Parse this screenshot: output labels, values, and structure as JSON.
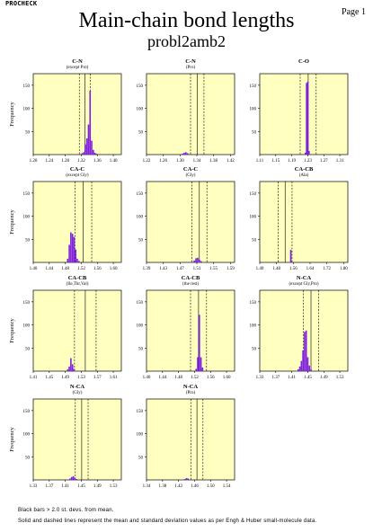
{
  "header": {
    "program": "PROCHECK",
    "page": "Page 1"
  },
  "title": "Main-chain bond lengths",
  "subtitle": "probl2amb2",
  "footer": {
    "line1": "Black bars > 2.0 st. devs. from mean.",
    "line2": "Solid and dashed lines represent the mean and standard deviation values as per Engh & Huber small-molecule data."
  },
  "chart_data": [
    {
      "type": "bar",
      "title": "C-N",
      "subtitle": "(except Pro)",
      "ylabel": "Frequency",
      "xlim": [
        1.2,
        1.42
      ],
      "xticks": [
        "1.20",
        "1.24",
        "1.28",
        "1.32",
        "1.36",
        "1.40"
      ],
      "ylim": [
        0,
        175
      ],
      "yticks": [
        50,
        100,
        150
      ],
      "mean": 1.329,
      "sd": 0.014,
      "bars": [
        [
          1.322,
          3
        ],
        [
          1.326,
          5
        ],
        [
          1.33,
          22
        ],
        [
          1.334,
          35
        ],
        [
          1.338,
          65
        ],
        [
          1.342,
          138
        ],
        [
          1.346,
          30
        ],
        [
          1.35,
          10
        ],
        [
          1.354,
          4
        ],
        [
          1.358,
          2
        ]
      ]
    },
    {
      "type": "bar",
      "title": "C-N",
      "subtitle": "(Pro)",
      "ylabel": "",
      "xlim": [
        1.22,
        1.43
      ],
      "xticks": [
        "1.22",
        "1.26",
        "1.30",
        "1.34",
        "1.38",
        "1.42"
      ],
      "ylim": [
        0,
        175
      ],
      "yticks": [
        50,
        100,
        150
      ],
      "mean": 1.341,
      "sd": 0.016,
      "bars": [
        [
          1.306,
          2
        ],
        [
          1.31,
          4
        ],
        [
          1.314,
          5
        ],
        [
          1.318,
          3
        ]
      ]
    },
    {
      "type": "bar",
      "title": "C-O",
      "subtitle": "",
      "ylabel": "",
      "xlim": [
        1.11,
        1.33
      ],
      "xticks": [
        "1.11",
        "1.15",
        "1.19",
        "1.23",
        "1.27",
        "1.31"
      ],
      "ylim": [
        0,
        175
      ],
      "yticks": [
        50,
        100,
        150
      ],
      "mean": 1.231,
      "sd": 0.02,
      "bars": [
        [
          1.224,
          4
        ],
        [
          1.227,
          155
        ],
        [
          1.23,
          158
        ],
        [
          1.233,
          8
        ]
      ]
    },
    {
      "type": "bar",
      "title": "CA-C",
      "subtitle": "(except Gly)",
      "ylabel": "Frequency",
      "xlim": [
        1.4,
        1.62
      ],
      "xticks": [
        "1.40",
        "1.44",
        "1.48",
        "1.52",
        "1.56",
        "1.60"
      ],
      "ylim": [
        0,
        175
      ],
      "yticks": [
        50,
        100,
        150
      ],
      "mean": 1.525,
      "sd": 0.021,
      "bars": [
        [
          1.486,
          8
        ],
        [
          1.49,
          38
        ],
        [
          1.494,
          65
        ],
        [
          1.498,
          62
        ],
        [
          1.502,
          55
        ],
        [
          1.506,
          28
        ],
        [
          1.51,
          8
        ],
        [
          1.514,
          3
        ]
      ]
    },
    {
      "type": "bar",
      "title": "CA-C",
      "subtitle": "(Gly)",
      "ylabel": "",
      "xlim": [
        1.39,
        1.6
      ],
      "xticks": [
        "1.39",
        "1.43",
        "1.47",
        "1.51",
        "1.55",
        "1.59"
      ],
      "ylim": [
        0,
        175
      ],
      "yticks": [
        50,
        100,
        150
      ],
      "mean": 1.516,
      "sd": 0.018,
      "bars": [
        [
          1.504,
          4
        ],
        [
          1.508,
          9
        ],
        [
          1.512,
          10
        ],
        [
          1.516,
          6
        ],
        [
          1.52,
          3
        ]
      ]
    },
    {
      "type": "bar",
      "title": "CA-CB",
      "subtitle": "(Ala)",
      "ylabel": "",
      "xlim": [
        1.4,
        1.82
      ],
      "xticks": [
        "1.40",
        "1.48",
        "1.56",
        "1.64",
        "1.72",
        "1.80"
      ],
      "ylim": [
        0,
        175
      ],
      "yticks": [
        50,
        100,
        150
      ],
      "mean": 1.521,
      "sd": 0.033,
      "bars": [
        [
          1.548,
          27
        ]
      ]
    },
    {
      "type": "bar",
      "title": "CA-CB",
      "subtitle": "(Ile,Thr,Val)",
      "ylabel": "Frequency",
      "xlim": [
        1.41,
        1.63
      ],
      "xticks": [
        "1.41",
        "1.45",
        "1.49",
        "1.53",
        "1.57",
        "1.61"
      ],
      "ylim": [
        0,
        175
      ],
      "yticks": [
        50,
        100,
        150
      ],
      "mean": 1.54,
      "sd": 0.027,
      "bars": [
        [
          1.496,
          4
        ],
        [
          1.5,
          10
        ],
        [
          1.504,
          28
        ],
        [
          1.508,
          15
        ],
        [
          1.512,
          5
        ]
      ]
    },
    {
      "type": "bar",
      "title": "CA-CB",
      "subtitle": "(the rest)",
      "ylabel": "",
      "xlim": [
        1.4,
        1.62
      ],
      "xticks": [
        "1.40",
        "1.44",
        "1.48",
        "1.52",
        "1.56",
        "1.60"
      ],
      "ylim": [
        0,
        175
      ],
      "yticks": [
        50,
        100,
        150
      ],
      "mean": 1.53,
      "sd": 0.02,
      "bars": [
        [
          1.524,
          5
        ],
        [
          1.528,
          30
        ],
        [
          1.532,
          122
        ],
        [
          1.536,
          30
        ],
        [
          1.54,
          8
        ]
      ]
    },
    {
      "type": "bar",
      "title": "N-CA",
      "subtitle": "(except Gly,Pro)",
      "ylabel": "",
      "xlim": [
        1.33,
        1.55
      ],
      "xticks": [
        "1.33",
        "1.37",
        "1.41",
        "1.45",
        "1.49",
        "1.53"
      ],
      "ylim": [
        0,
        175
      ],
      "yticks": [
        50,
        100,
        150
      ],
      "mean": 1.458,
      "sd": 0.019,
      "bars": [
        [
          1.426,
          4
        ],
        [
          1.43,
          10
        ],
        [
          1.434,
          22
        ],
        [
          1.438,
          45
        ],
        [
          1.442,
          85
        ],
        [
          1.446,
          88
        ],
        [
          1.45,
          30
        ],
        [
          1.454,
          12
        ],
        [
          1.458,
          4
        ]
      ]
    },
    {
      "type": "bar",
      "title": "N-CA",
      "subtitle": "(Gly)",
      "ylabel": "Frequency",
      "xlim": [
        1.33,
        1.55
      ],
      "xticks": [
        "1.33",
        "1.37",
        "1.41",
        "1.45",
        "1.49",
        "1.53"
      ],
      "ylim": [
        0,
        175
      ],
      "yticks": [
        50,
        100,
        150
      ],
      "mean": 1.451,
      "sd": 0.016,
      "bars": [
        [
          1.422,
          3
        ],
        [
          1.426,
          6
        ],
        [
          1.43,
          8
        ],
        [
          1.434,
          5
        ],
        [
          1.438,
          2
        ]
      ]
    },
    {
      "type": "bar",
      "title": "N-CA",
      "subtitle": "(Pro)",
      "ylabel": "",
      "xlim": [
        1.34,
        1.56
      ],
      "xticks": [
        "1.34",
        "1.38",
        "1.42",
        "1.46",
        "1.50",
        "1.54"
      ],
      "ylim": [
        0,
        175
      ],
      "yticks": [
        50,
        100,
        150
      ],
      "mean": 1.466,
      "sd": 0.015,
      "bars": [
        [
          1.436,
          2
        ],
        [
          1.44,
          4
        ],
        [
          1.444,
          3
        ]
      ]
    }
  ],
  "colors": {
    "panel_bg": "#ffffc0",
    "bar": "#7f1fdf"
  }
}
